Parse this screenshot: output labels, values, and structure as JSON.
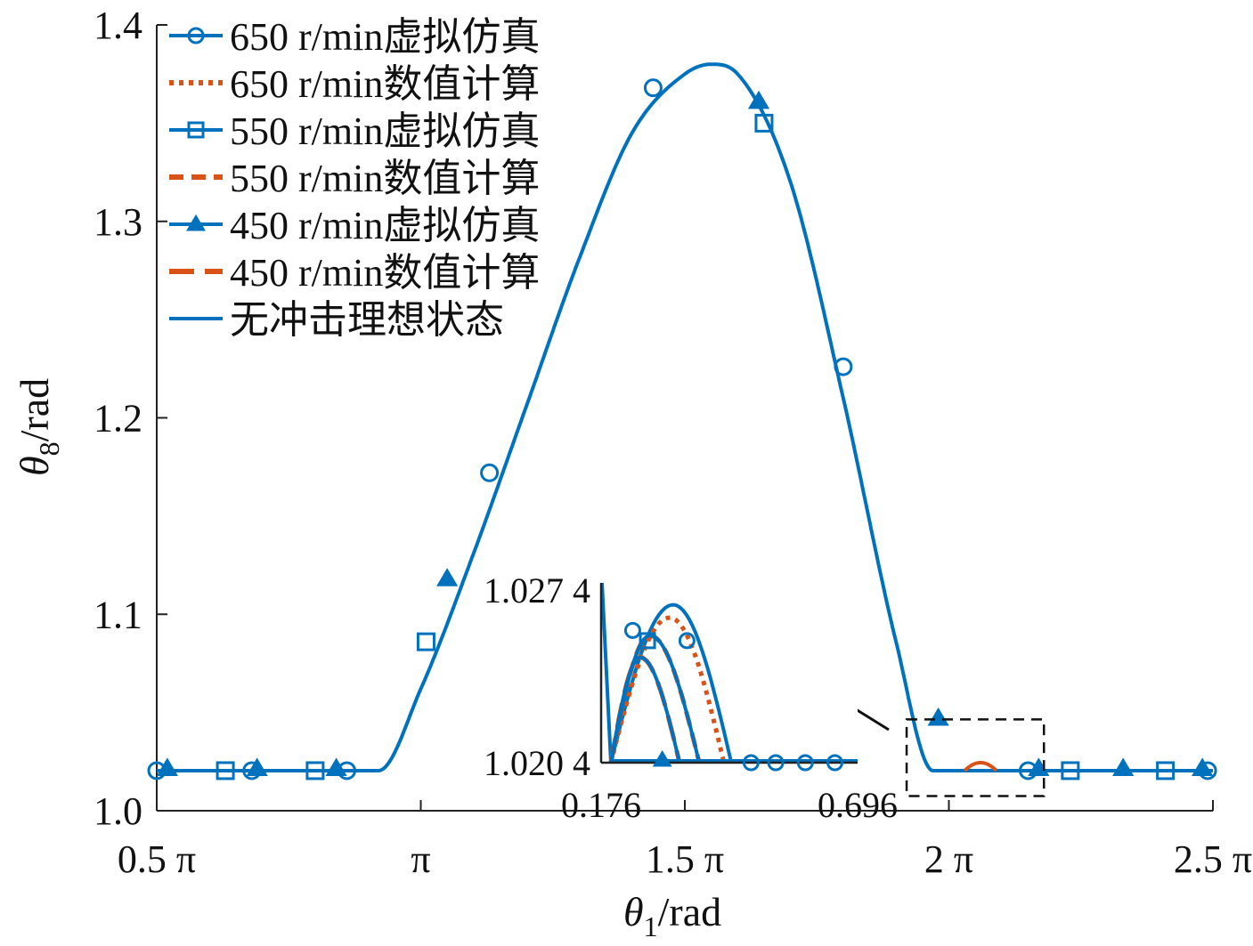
{
  "chart_data": {
    "type": "line",
    "xlabel": {
      "main": "θ",
      "sub": "1",
      "unit": "/rad"
    },
    "ylabel": {
      "main": "θ",
      "sub": "8",
      "unit": "/rad"
    },
    "xlim": [
      0.5,
      2.5
    ],
    "ylim": [
      1.0,
      1.4
    ],
    "x_unit": "π",
    "x_ticks": [
      {
        "value": 0.5,
        "label": "0.5 π"
      },
      {
        "value": 1.0,
        "label": "π"
      },
      {
        "value": 1.5,
        "label": "1.5 π"
      },
      {
        "value": 2.0,
        "label": "2 π"
      },
      {
        "value": 2.5,
        "label": "2.5 π"
      }
    ],
    "y_ticks": [
      {
        "value": 1.0,
        "label": "1.0"
      },
      {
        "value": 1.1,
        "label": "1.1"
      },
      {
        "value": 1.2,
        "label": "1.2"
      },
      {
        "value": 1.3,
        "label": "1.3"
      },
      {
        "value": 1.4,
        "label": "1.4"
      }
    ],
    "grid": false,
    "legend_position": "top-left",
    "colors": {
      "blue": "#0072BD",
      "orange": "#D95319"
    },
    "ideal_curve": {
      "x": [
        0.5,
        0.92,
        1.0,
        1.1,
        1.2,
        1.3,
        1.4,
        1.5,
        1.55,
        1.6,
        1.7,
        1.8,
        1.9,
        1.97,
        2.5
      ],
      "y": [
        1.0204,
        1.0204,
        1.062,
        1.131,
        1.206,
        1.281,
        1.345,
        1.375,
        1.38,
        1.375,
        1.32,
        1.21,
        1.086,
        1.0204,
        1.0204
      ]
    },
    "series": [
      {
        "name": "650 r/min虚拟仿真",
        "color": "#0072BD",
        "line": "solid",
        "marker": "circle",
        "markers_x": [
          0.5,
          0.68,
          0.86,
          1.13,
          1.44,
          1.8,
          2.15,
          2.49
        ],
        "markers_y": [
          1.0204,
          1.0204,
          1.0204,
          1.172,
          1.368,
          1.226,
          1.0204,
          1.0204
        ]
      },
      {
        "name": "650 r/min数值计算",
        "color": "#D95319",
        "line": "dotted",
        "marker": "none"
      },
      {
        "name": "550 r/min虚拟仿真",
        "color": "#0072BD",
        "line": "solid",
        "marker": "square",
        "markers_x": [
          0.63,
          0.8,
          1.01,
          1.65,
          2.23,
          2.41
        ],
        "markers_y": [
          1.0204,
          1.0204,
          1.086,
          1.35,
          1.0204,
          1.0204
        ]
      },
      {
        "name": "550 r/min数值计算",
        "color": "#D95319",
        "line": "dashed",
        "marker": "none"
      },
      {
        "name": "450 r/min虚拟仿真",
        "color": "#0072BD",
        "line": "solid",
        "marker": "triangle",
        "markers_x": [
          0.52,
          0.69,
          0.84,
          1.05,
          1.64,
          1.98,
          2.17,
          2.33,
          2.48
        ],
        "markers_y": [
          1.0214,
          1.0214,
          1.0214,
          1.118,
          1.361,
          1.047,
          1.0214,
          1.0214,
          1.0214
        ]
      },
      {
        "name": "450 r/min数值计算",
        "color": "#D95319",
        "line": "longdash",
        "marker": "none"
      },
      {
        "name": "无冲击理想状态",
        "color": "#0072BD",
        "line": "solid",
        "marker": "none"
      }
    ],
    "inset": {
      "xlim": [
        0.176,
        0.696
      ],
      "ylim": [
        1.0204,
        1.0274
      ],
      "x_ticks": [
        {
          "value": 0.176,
          "label": "0.176"
        },
        {
          "value": 0.696,
          "label": "0.696"
        }
      ],
      "y_ticks": [
        {
          "value": 1.0204,
          "label": "1.020 4"
        },
        {
          "value": 1.0274,
          "label": "1.027 4"
        }
      ],
      "zoom_box_x": [
        1.92,
        2.18
      ],
      "zoom_box_y": [
        1.0075,
        1.0465
      ],
      "curves": [
        {
          "series": "无冲击理想状态",
          "color": "#0072BD",
          "style": "solid",
          "x_end": 0.44,
          "peak_x": 0.322,
          "peak_y": 1.02655
        },
        {
          "series": "650 r/min数值计算",
          "color": "#D95319",
          "style": "dotted",
          "x_end": 0.425,
          "peak_x": 0.315,
          "peak_y": 1.02605
        },
        {
          "series": "550 r/min数值计算",
          "color": "#D95319",
          "style": "dashed",
          "x_end": 0.375,
          "peak_x": 0.275,
          "peak_y": 1.02535
        },
        {
          "series": "450 r/min数值计算",
          "color": "#D95319",
          "style": "longdash",
          "x_end": 0.335,
          "peak_x": 0.255,
          "peak_y": 1.0245
        },
        {
          "series": "550 r/min虚拟仿真",
          "color": "#0072BD",
          "style": "solid",
          "x_end": 0.375,
          "peak_x": 0.275,
          "peak_y": 1.02535
        },
        {
          "series": "450 r/min虚拟仿真",
          "color": "#0072BD",
          "style": "solid",
          "x_end": 0.335,
          "peak_x": 0.255,
          "peak_y": 1.0245
        }
      ],
      "markers": [
        {
          "series": "650 r/min虚拟仿真",
          "marker": "circle",
          "x": [
            0.24,
            0.35,
            0.48,
            0.53,
            0.59,
            0.65
          ],
          "y": [
            1.02555,
            1.02515,
            1.0204,
            1.0204,
            1.0204,
            1.0204
          ]
        },
        {
          "series": "550 r/min虚拟仿真",
          "marker": "square",
          "x": [
            0.27
          ],
          "y": [
            1.02515
          ]
        },
        {
          "series": "450 r/min虚拟仿真",
          "marker": "triangle",
          "x": [
            0.3
          ],
          "y": [
            1.0205
          ]
        }
      ]
    }
  }
}
